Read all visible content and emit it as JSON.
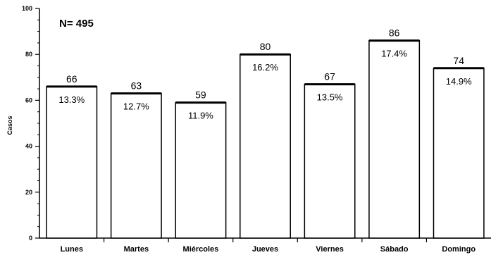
{
  "chart_data": {
    "type": "bar",
    "annotation": "N= 495",
    "ylabel": "Casos",
    "xlabel": "",
    "ylim": [
      0,
      100
    ],
    "yticks": [
      0,
      20,
      40,
      60,
      80,
      100
    ],
    "grid": false,
    "categories": [
      "Lunes",
      "Martes",
      "Miércoles",
      "Jueves",
      "Viernes",
      "Sábado",
      "Domingo"
    ],
    "values": [
      66,
      63,
      59,
      80,
      67,
      86,
      74
    ],
    "value_labels": [
      "66",
      "63",
      "59",
      "80",
      "67",
      "86",
      "74"
    ],
    "percent_labels": [
      "13.3%",
      "12.7%",
      "11.9%",
      "16.2%",
      "13.5%",
      "17.4%",
      "14.9%"
    ],
    "bar_color": "#ffffff",
    "edge_color": "#000000"
  }
}
